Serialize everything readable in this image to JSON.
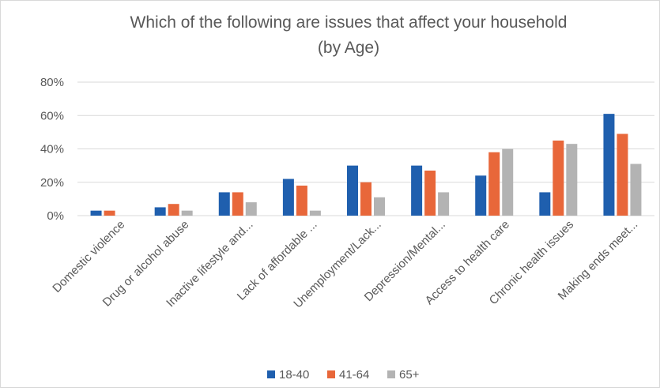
{
  "chart_data": {
    "type": "bar",
    "title": "Which of the following are issues that affect your household",
    "subtitle": "(by Age)",
    "categories": [
      "Domestic violence",
      "Drug or alcohol abuse",
      "Inactive lifestyle and...",
      "Lack of affordable ...",
      "Unemployment/Lack...",
      "Depression/Mental...",
      "Access to health care",
      "Chronic health issues",
      "Making ends meet..."
    ],
    "series": [
      {
        "name": "18-40",
        "color": "#1f5fae",
        "values": [
          3,
          5,
          14,
          22,
          30,
          30,
          24,
          14,
          61
        ]
      },
      {
        "name": "41-64",
        "color": "#e8673a",
        "values": [
          3,
          7,
          14,
          18,
          20,
          27,
          38,
          45,
          49
        ]
      },
      {
        "name": "65+",
        "color": "#b3b3b3",
        "values": [
          0,
          3,
          8,
          3,
          11,
          14,
          40,
          43,
          31
        ]
      }
    ],
    "ylim": [
      0,
      80
    ],
    "yticks": [
      0,
      20,
      40,
      60,
      80
    ],
    "ytick_labels": [
      "0%",
      "20%",
      "40%",
      "60%",
      "80%"
    ],
    "grid": true,
    "legend_position": "bottom"
  }
}
